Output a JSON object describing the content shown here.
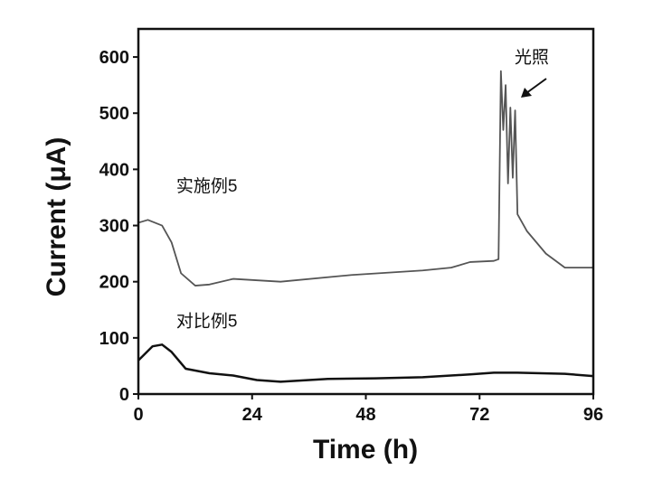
{
  "chart_data": {
    "type": "line",
    "title": "",
    "xlabel": "Time (h)",
    "ylabel": "Current (μA)",
    "xlim": [
      0,
      96
    ],
    "ylim": [
      0,
      650
    ],
    "xticks": [
      0,
      24,
      48,
      72,
      96
    ],
    "yticks": [
      0,
      100,
      200,
      300,
      400,
      500,
      600
    ],
    "series": [
      {
        "name": "实施例5",
        "color": "#555555",
        "x": [
          0,
          2,
          5,
          7,
          9,
          12,
          15,
          20,
          30,
          45,
          60,
          66,
          70,
          75,
          76,
          76.5,
          77,
          77.5,
          78,
          78.5,
          79,
          79.5,
          80,
          82,
          86,
          90,
          96
        ],
        "y": [
          305,
          310,
          300,
          270,
          215,
          193,
          195,
          205,
          200,
          212,
          220,
          225,
          235,
          237,
          240,
          575,
          470,
          550,
          375,
          510,
          385,
          505,
          320,
          290,
          250,
          225,
          225
        ]
      },
      {
        "name": "对比例5",
        "color": "#111111",
        "x": [
          0,
          3,
          5,
          7,
          10,
          15,
          20,
          25,
          30,
          40,
          50,
          60,
          70,
          75,
          80,
          90,
          96
        ],
        "y": [
          60,
          85,
          88,
          75,
          45,
          37,
          33,
          25,
          22,
          27,
          28,
          30,
          35,
          38,
          38,
          36,
          32
        ]
      }
    ],
    "annotations": [
      {
        "text": "光照",
        "x": 83,
        "y": 590
      },
      {
        "text": "实施例5",
        "x": 8,
        "y": 360
      },
      {
        "text": "对比例5",
        "x": 8,
        "y": 120
      }
    ],
    "grid": false,
    "legend": "none"
  }
}
